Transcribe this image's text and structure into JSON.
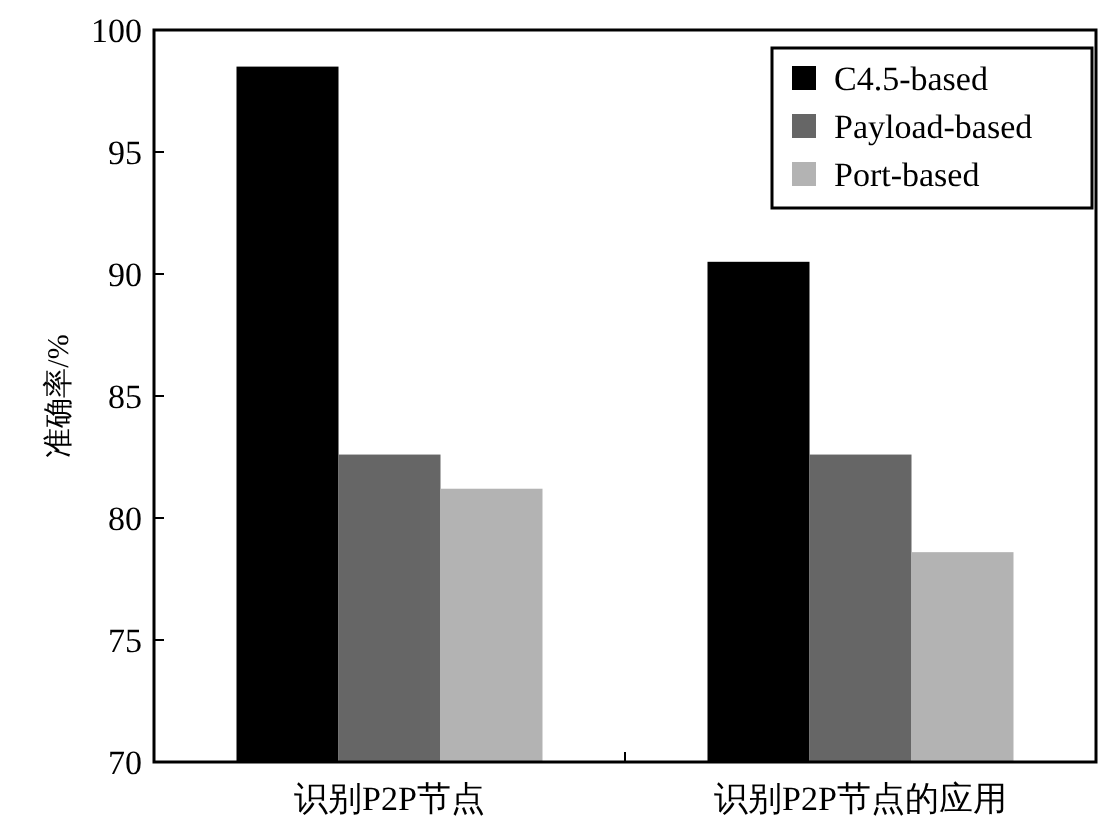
{
  "chart_data": {
    "type": "bar",
    "ylabel": "准确率/%",
    "categories": [
      "识别P2P节点",
      "识别P2P节点的应用"
    ],
    "series": [
      {
        "name": "C4.5-based",
        "color": "#000000",
        "values": [
          98.5,
          90.5
        ]
      },
      {
        "name": "Payload-based",
        "color": "#666666",
        "values": [
          82.6,
          82.6
        ]
      },
      {
        "name": "Port-based",
        "color": "#b3b3b3",
        "values": [
          81.2,
          78.6
        ]
      }
    ],
    "ylim": [
      70,
      100
    ],
    "yticks": [
      70,
      75,
      80,
      85,
      90,
      95,
      100
    ],
    "grid": false,
    "legend": "top right"
  }
}
